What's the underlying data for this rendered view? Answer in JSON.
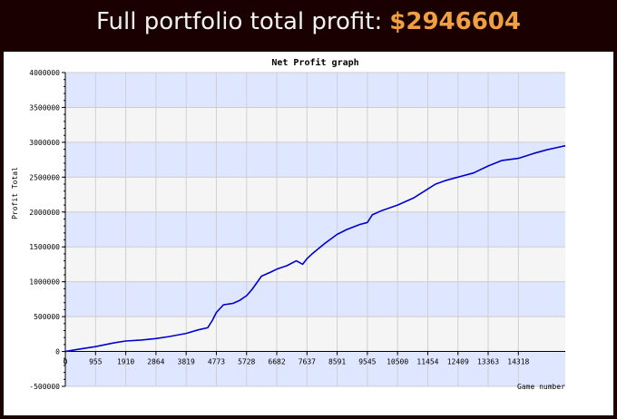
{
  "header": {
    "prefix": "Full portfolio total profit:",
    "amount": "$2946604"
  },
  "colors": {
    "background": "#1a0000",
    "header_text": "#f2f2f2",
    "amount": "#f0a040",
    "band": "#dfe6ff",
    "band_alt": "#f5f5f5",
    "line": "#0000cc"
  },
  "chart_data": {
    "type": "line",
    "title": "Net Profit graph",
    "xlabel": "Game number",
    "ylabel": "Profit Total",
    "ylim": [
      -500000,
      4000000
    ],
    "xlim": [
      0,
      15800
    ],
    "x_ticks": [
      "0",
      "955",
      "1910",
      "2864",
      "3819",
      "4773",
      "5728",
      "6682",
      "7637",
      "8591",
      "9545",
      "10500",
      "11454",
      "12409",
      "13363",
      "14318"
    ],
    "x_tick_values": [
      0,
      955,
      1910,
      2864,
      3819,
      4773,
      5728,
      6682,
      7637,
      8591,
      9545,
      10500,
      11454,
      12409,
      13363,
      14318
    ],
    "y_ticks": [
      "-500000",
      "0",
      "500000",
      "1000000",
      "1500000",
      "2000000",
      "2500000",
      "3000000",
      "3500000",
      "4000000"
    ],
    "y_tick_values": [
      -500000,
      0,
      500000,
      1000000,
      1500000,
      2000000,
      2500000,
      3000000,
      3500000,
      4000000
    ],
    "grid": true,
    "series": [
      {
        "x": [
          0,
          400,
          955,
          1500,
          1910,
          2400,
          2864,
          3300,
          3819,
          4200,
          4500,
          4650,
          4773,
          5000,
          5300,
          5500,
          5728,
          5900,
          6200,
          6500,
          6682,
          7000,
          7300,
          7500,
          7637,
          7800,
          8200,
          8591,
          8900,
          9300,
          9545,
          9700,
          10000,
          10500,
          11000,
          11454,
          11700,
          12000,
          12409,
          12900,
          13363,
          13800,
          14318,
          14800,
          15200,
          15500,
          15800
        ],
        "y": [
          0,
          30000,
          70000,
          120000,
          150000,
          165000,
          185000,
          215000,
          260000,
          310000,
          340000,
          450000,
          560000,
          670000,
          690000,
          730000,
          800000,
          890000,
          1080000,
          1140000,
          1180000,
          1230000,
          1300000,
          1250000,
          1330000,
          1400000,
          1550000,
          1680000,
          1750000,
          1820000,
          1850000,
          1960000,
          2020000,
          2100000,
          2200000,
          2330000,
          2400000,
          2450000,
          2500000,
          2560000,
          2660000,
          2740000,
          2770000,
          2840000,
          2890000,
          2920000,
          2950000
        ]
      }
    ]
  }
}
